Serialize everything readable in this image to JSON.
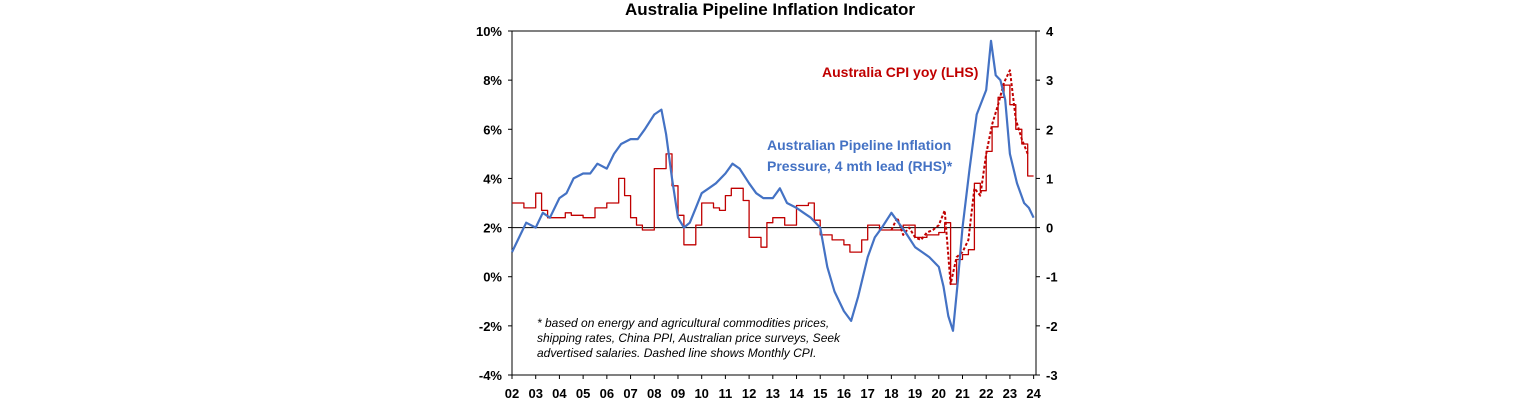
{
  "chart_data": {
    "type": "line",
    "title": "Australia Pipeline Inflation Indicator",
    "x_tick_labels": [
      "02",
      "03",
      "04",
      "05",
      "06",
      "07",
      "08",
      "09",
      "10",
      "11",
      "12",
      "13",
      "14",
      "15",
      "16",
      "17",
      "18",
      "19",
      "20",
      "21",
      "22",
      "23",
      "24"
    ],
    "xlim": [
      2002,
      2024.1
    ],
    "left_axis": {
      "ylim": [
        -4,
        10
      ],
      "ticks": [
        -4,
        -2,
        0,
        2,
        4,
        6,
        8,
        10
      ],
      "tick_labels": [
        "-4%",
        "-2%",
        "0%",
        "2%",
        "4%",
        "6%",
        "8%",
        "10%"
      ]
    },
    "right_axis": {
      "ylim": [
        -3,
        4
      ],
      "ticks": [
        -3,
        -2,
        -1,
        0,
        1,
        2,
        3,
        4
      ],
      "tick_labels": [
        "-3",
        "-2",
        "-1",
        "0",
        "1",
        "2",
        "3",
        "4"
      ]
    },
    "grid": false,
    "annotations": {
      "cpi_series_label": "Australia CPI yoy (LHS)",
      "pipeline_series_label_line1": "Australian Pipeline Inflation",
      "pipeline_series_label_line2": "Pressure, 4 mth lead (RHS)*",
      "footnote_line1": "* based on energy and agricultural commodities prices,",
      "footnote_line2": "shipping rates, China PPI, Australian price surveys, Seek",
      "footnote_line3": "advertised salaries. Dashed line shows Monthly CPI."
    },
    "series": [
      {
        "axis": "left",
        "style": "step",
        "color": "#c00000",
        "x": [
          2002.0,
          2002.5,
          2003.0,
          2003.25,
          2003.5,
          2004.0,
          2004.25,
          2004.5,
          2005.0,
          2005.5,
          2006.0,
          2006.5,
          2006.75,
          2007.0,
          2007.25,
          2007.5,
          2008.0,
          2008.5,
          2008.75,
          2009.0,
          2009.25,
          2009.75,
          2010.0,
          2010.5,
          2010.75,
          2011.0,
          2011.25,
          2011.75,
          2012.0,
          2012.5,
          2012.75,
          2013.0,
          2013.5,
          2014.0,
          2014.5,
          2014.75,
          2015.0,
          2015.5,
          2016.0,
          2016.25,
          2016.75,
          2017.0,
          2017.5,
          2018.0,
          2018.5,
          2019.0,
          2019.5,
          2020.0,
          2020.25,
          2020.5,
          2020.75,
          2021.0,
          2021.25,
          2021.5,
          2021.75,
          2022.0,
          2022.25,
          2022.5,
          2022.75,
          2023.0,
          2023.25,
          2023.5,
          2023.75
        ],
        "y": [
          3.0,
          2.8,
          3.4,
          2.7,
          2.4,
          2.4,
          2.6,
          2.5,
          2.4,
          2.8,
          3.0,
          4.0,
          3.3,
          2.4,
          2.1,
          1.9,
          4.4,
          5.0,
          3.7,
          2.5,
          1.3,
          2.1,
          3.0,
          2.8,
          2.7,
          3.3,
          3.6,
          3.1,
          1.6,
          1.2,
          2.2,
          2.4,
          2.1,
          2.9,
          3.0,
          2.3,
          1.7,
          1.5,
          1.3,
          1.0,
          1.5,
          2.1,
          1.9,
          1.9,
          2.1,
          1.6,
          1.7,
          1.8,
          2.2,
          -0.3,
          0.7,
          0.9,
          1.1,
          3.8,
          3.5,
          5.1,
          6.1,
          7.3,
          7.8,
          7.0,
          6.0,
          5.4,
          4.1
        ]
      },
      {
        "axis": "left",
        "style": "dashed",
        "color": "#c00000",
        "x": [
          2018.0,
          2018.25,
          2018.5,
          2018.75,
          2019.0,
          2019.25,
          2019.5,
          2019.75,
          2020.0,
          2020.25,
          2020.5,
          2020.75,
          2021.0,
          2021.25,
          2021.5,
          2021.75,
          2022.0,
          2022.25,
          2022.5,
          2022.75,
          2023.0,
          2023.25,
          2023.5,
          2023.75
        ],
        "y": [
          1.9,
          2.4,
          1.7,
          2.0,
          1.6,
          1.5,
          1.8,
          1.9,
          2.1,
          2.7,
          -0.3,
          0.8,
          1.0,
          1.5,
          3.6,
          3.3,
          5.0,
          6.2,
          7.0,
          7.9,
          8.4,
          6.4,
          5.6,
          5.0
        ]
      },
      {
        "axis": "right",
        "style": "solid",
        "color": "#4472c4",
        "x": [
          2002.0,
          2002.3,
          2002.6,
          2003.0,
          2003.3,
          2003.6,
          2004.0,
          2004.3,
          2004.6,
          2005.0,
          2005.3,
          2005.6,
          2006.0,
          2006.3,
          2006.6,
          2007.0,
          2007.3,
          2007.6,
          2008.0,
          2008.3,
          2008.5,
          2008.75,
          2009.0,
          2009.25,
          2009.5,
          2009.75,
          2010.0,
          2010.3,
          2010.6,
          2011.0,
          2011.3,
          2011.6,
          2012.0,
          2012.3,
          2012.6,
          2013.0,
          2013.3,
          2013.6,
          2014.0,
          2014.3,
          2014.6,
          2015.0,
          2015.3,
          2015.6,
          2016.0,
          2016.3,
          2016.6,
          2017.0,
          2017.3,
          2017.6,
          2018.0,
          2018.3,
          2018.6,
          2019.0,
          2019.3,
          2019.6,
          2020.0,
          2020.2,
          2020.4,
          2020.6,
          2020.8,
          2021.0,
          2021.3,
          2021.6,
          2022.0,
          2022.2,
          2022.4,
          2022.6,
          2022.8,
          2023.0,
          2023.3,
          2023.6,
          2023.8,
          2024.0
        ],
        "y": [
          -0.5,
          -0.2,
          0.1,
          0.0,
          0.3,
          0.2,
          0.6,
          0.7,
          1.0,
          1.1,
          1.1,
          1.3,
          1.2,
          1.5,
          1.7,
          1.8,
          1.8,
          2.0,
          2.3,
          2.4,
          1.9,
          1.0,
          0.2,
          0.0,
          0.1,
          0.4,
          0.7,
          0.8,
          0.9,
          1.1,
          1.3,
          1.2,
          0.9,
          0.7,
          0.6,
          0.6,
          0.8,
          0.5,
          0.4,
          0.3,
          0.2,
          0.0,
          -0.8,
          -1.3,
          -1.7,
          -1.9,
          -1.4,
          -0.6,
          -0.2,
          0.0,
          0.3,
          0.1,
          -0.1,
          -0.4,
          -0.5,
          -0.6,
          -0.8,
          -1.2,
          -1.8,
          -2.1,
          -1.1,
          0.0,
          1.2,
          2.3,
          2.8,
          3.8,
          3.1,
          3.0,
          2.6,
          1.5,
          0.9,
          0.5,
          0.4,
          0.2
        ]
      }
    ]
  }
}
